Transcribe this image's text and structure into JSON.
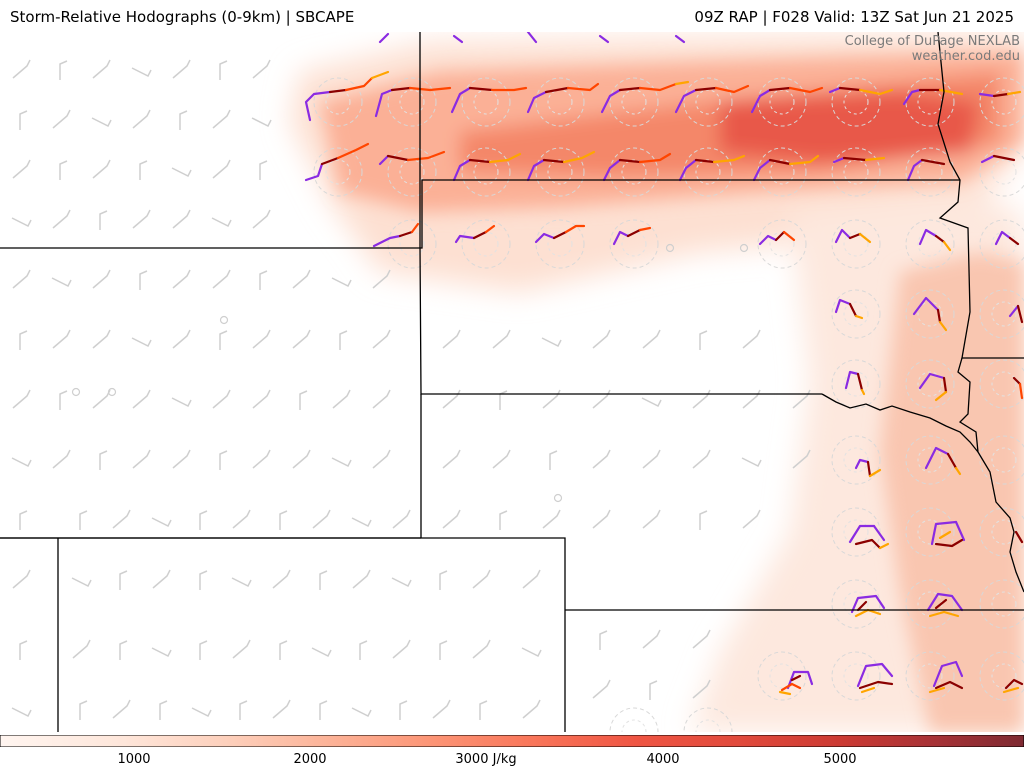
{
  "header": {
    "title": "Storm-Relative Hodographs (0-9km) | SBCAPE",
    "run_info": "09Z RAP | F028 Valid: 13Z Sat Jun 21 2025"
  },
  "credit": {
    "line1": "College of DuPage NEXLAB",
    "line2": "weather.cod.edu"
  },
  "colorbar": {
    "units": "J/kg",
    "ticks": [
      "1000",
      "2000",
      "3000 J/kg",
      "4000",
      "5000"
    ],
    "colors": [
      "#fff5f0",
      "#fee6da",
      "#fdd0bc",
      "#fcb398",
      "#fc9576",
      "#f9765a",
      "#ef5543",
      "#e14a3c",
      "#cc3a33",
      "#a83236",
      "#7e2a32"
    ]
  },
  "colors": {
    "state_borders": "#000000",
    "wind_barbs": "#cccccc",
    "hodo_0_3km": "#8b0000",
    "hodo_3_6km": "#ff4500",
    "hodo_6_9km": "#ffa500",
    "hodo_start": "#8a2be2"
  }
}
